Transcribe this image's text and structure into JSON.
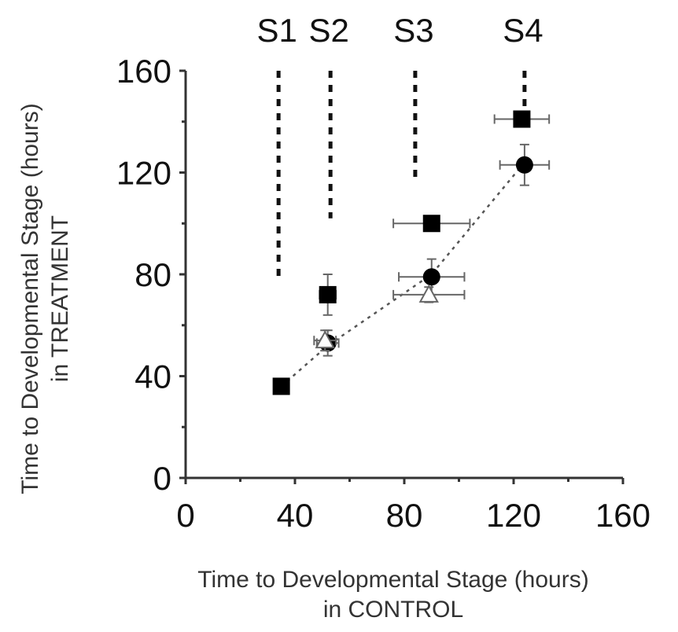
{
  "chart_data": {
    "type": "scatter",
    "x_axis": {
      "title_line1": "Time to Developmental Stage (hours)",
      "title_line2": "in CONTROL",
      "min": 0,
      "max": 160,
      "ticks": [
        0,
        40,
        80,
        120,
        160
      ],
      "tick_labels": [
        "0",
        "40",
        "80",
        "120",
        "160"
      ]
    },
    "y_axis": {
      "title_line1": "Time to Developmental Stage (hours)",
      "title_line2": "in TREATMENT",
      "min": 0,
      "max": 160,
      "ticks": [
        0,
        40,
        80,
        120,
        160
      ],
      "tick_labels": [
        "0",
        "40",
        "80",
        "120",
        "160"
      ]
    },
    "stages": [
      {
        "label": "S1",
        "x": 34,
        "y_from": 78,
        "y_to": 160
      },
      {
        "label": "S2",
        "x": 53,
        "y_from": 102,
        "y_to": 160
      },
      {
        "label": "S3",
        "x": 84,
        "y_from": 116,
        "y_to": 160
      },
      {
        "label": "S4",
        "x": 124,
        "y_from": 145,
        "y_to": 160
      }
    ],
    "series": [
      {
        "marker": "square",
        "points": [
          {
            "x": 35,
            "y": 36,
            "xerr": 0,
            "yerr": 0
          },
          {
            "x": 52,
            "y": 72,
            "xerr": 3,
            "yerr": 8
          },
          {
            "x": 90,
            "y": 100,
            "xerr": 14,
            "yerr": 2
          },
          {
            "x": 123,
            "y": 141,
            "xerr": 10,
            "yerr": 2
          }
        ]
      },
      {
        "marker": "circle",
        "points": [
          {
            "x": 52,
            "y": 53,
            "xerr": 4,
            "yerr": 5
          },
          {
            "x": 90,
            "y": 79,
            "xerr": 12,
            "yerr": 7
          },
          {
            "x": 124,
            "y": 123,
            "xerr": 9,
            "yerr": 8
          }
        ]
      },
      {
        "marker": "triangle",
        "points": [
          {
            "x": 89,
            "y": 72,
            "xerr": 13,
            "yerr": 3
          },
          {
            "x": 51,
            "y": 54,
            "xerr": 4,
            "yerr": 4
          }
        ]
      }
    ],
    "trend_line": {
      "style": "dotted",
      "points": [
        [
          35,
          36
        ],
        [
          52,
          52
        ],
        [
          90,
          80
        ],
        [
          124,
          124
        ]
      ]
    },
    "grid": false
  }
}
